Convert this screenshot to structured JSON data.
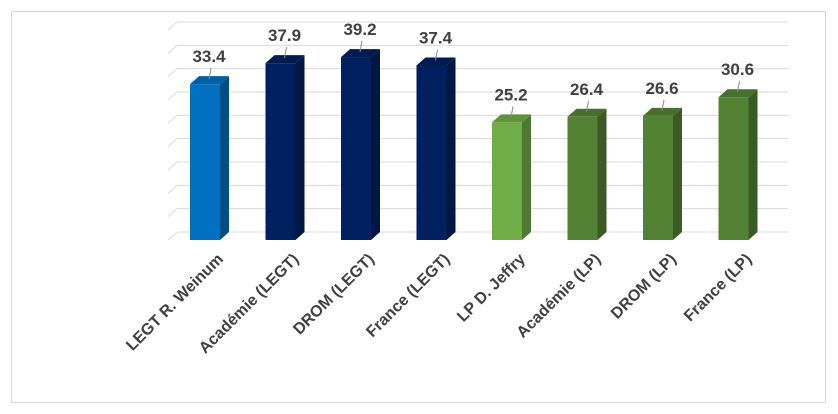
{
  "chart_data": {
    "type": "bar",
    "categories": [
      "LEGT R. Weinum",
      "Académie (LEGT)",
      "DROM (LEGT)",
      "France (LEGT)",
      "LP D. Jeffry",
      "Académie (LP)",
      "DROM (LP)",
      "France (LP)"
    ],
    "values": [
      33.4,
      37.9,
      39.2,
      37.4,
      25.2,
      26.4,
      26.6,
      30.6
    ],
    "value_labels": [
      "33.4",
      "37.9",
      "39.2",
      "37.4",
      "25.2",
      "26.4",
      "26.6",
      "30.6"
    ],
    "colors": [
      "#0070c0",
      "#002060",
      "#002060",
      "#002060",
      "#70ad47",
      "#548235",
      "#548235",
      "#548235"
    ],
    "title": "",
    "xlabel": "",
    "ylabel": "",
    "ylim": [
      0,
      45
    ],
    "grid": true,
    "legend": "none",
    "style": "3d-column"
  }
}
